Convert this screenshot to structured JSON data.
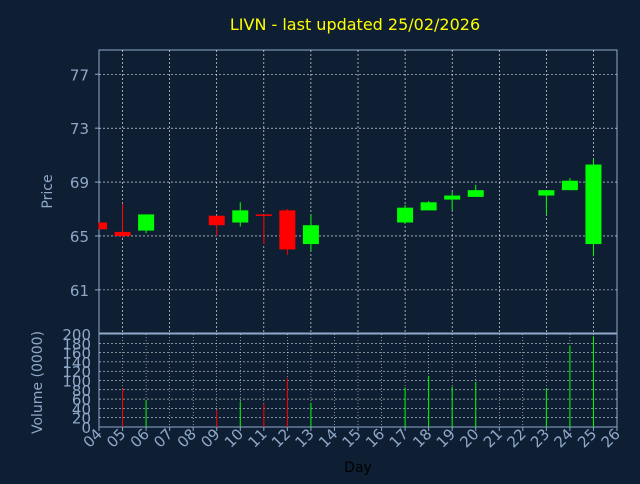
{
  "title": "LIVN - last updated 25/02/2026",
  "colors": {
    "background": "#0f1f33",
    "title": "#ffff00",
    "axis_text": "#8fa8c8",
    "axis_line": "#8fa8c8",
    "grid": "#ffffff",
    "up": "#00ff00",
    "down": "#ff0000"
  },
  "chart_data": [
    {
      "type": "candlestick",
      "ylabel": "Price",
      "ylim": [
        57.8,
        78.8
      ],
      "yticks": [
        61,
        65,
        69,
        73,
        77
      ],
      "xlim": [
        4,
        26
      ],
      "grid": true,
      "candles": [
        {
          "day": 4,
          "open": 66.0,
          "high": 66.0,
          "low": 65.5,
          "close": 65.5
        },
        {
          "day": 5,
          "open": 65.3,
          "high": 67.4,
          "low": 64.9,
          "close": 65.0
        },
        {
          "day": 6,
          "open": 65.4,
          "high": 66.6,
          "low": 65.2,
          "close": 66.6
        },
        {
          "day": 9,
          "open": 66.5,
          "high": 66.5,
          "low": 65.0,
          "close": 65.8
        },
        {
          "day": 10,
          "open": 66.0,
          "high": 67.5,
          "low": 65.7,
          "close": 66.9
        },
        {
          "day": 11,
          "open": 66.6,
          "high": 66.6,
          "low": 64.4,
          "close": 66.5
        },
        {
          "day": 12,
          "open": 66.9,
          "high": 67.0,
          "low": 63.6,
          "close": 64.0
        },
        {
          "day": 13,
          "open": 64.4,
          "high": 66.6,
          "low": 63.9,
          "close": 65.8
        },
        {
          "day": 17,
          "open": 66.0,
          "high": 67.3,
          "low": 65.9,
          "close": 67.1
        },
        {
          "day": 18,
          "open": 66.9,
          "high": 67.6,
          "low": 66.9,
          "close": 67.5
        },
        {
          "day": 19,
          "open": 67.7,
          "high": 68.3,
          "low": 66.9,
          "close": 68.0
        },
        {
          "day": 20,
          "open": 67.9,
          "high": 68.8,
          "low": 67.9,
          "close": 68.4
        },
        {
          "day": 23,
          "open": 68.0,
          "high": 68.4,
          "low": 66.6,
          "close": 68.4
        },
        {
          "day": 24,
          "open": 68.4,
          "high": 69.3,
          "low": 68.4,
          "close": 69.1
        },
        {
          "day": 25,
          "open": 64.4,
          "high": 70.7,
          "low": 63.5,
          "close": 70.3
        }
      ]
    },
    {
      "type": "bar",
      "ylabel": "Volume (0000)",
      "xlabel": "Day",
      "ylim": [
        0,
        200
      ],
      "yticks": [
        0,
        20,
        40,
        60,
        80,
        100,
        120,
        140,
        160,
        180,
        200
      ],
      "xlim": [
        4,
        26
      ],
      "xticks": [
        "04",
        "05",
        "06",
        "07",
        "08",
        "09",
        "10",
        "11",
        "12",
        "13",
        "14",
        "15",
        "16",
        "17",
        "18",
        "19",
        "20",
        "21",
        "22",
        "23",
        "24",
        "25",
        "26"
      ],
      "grid": true,
      "bars": [
        {
          "day": 5,
          "value": 83,
          "direction": "down"
        },
        {
          "day": 6,
          "value": 57,
          "direction": "up"
        },
        {
          "day": 9,
          "value": 37,
          "direction": "down"
        },
        {
          "day": 10,
          "value": 55,
          "direction": "up"
        },
        {
          "day": 11,
          "value": 50,
          "direction": "down"
        },
        {
          "day": 12,
          "value": 105,
          "direction": "down"
        },
        {
          "day": 13,
          "value": 52,
          "direction": "up"
        },
        {
          "day": 17,
          "value": 85,
          "direction": "up"
        },
        {
          "day": 18,
          "value": 110,
          "direction": "up"
        },
        {
          "day": 19,
          "value": 87,
          "direction": "up"
        },
        {
          "day": 20,
          "value": 97,
          "direction": "up"
        },
        {
          "day": 23,
          "value": 83,
          "direction": "up"
        },
        {
          "day": 24,
          "value": 175,
          "direction": "up"
        },
        {
          "day": 25,
          "value": 195,
          "direction": "up"
        }
      ]
    }
  ]
}
